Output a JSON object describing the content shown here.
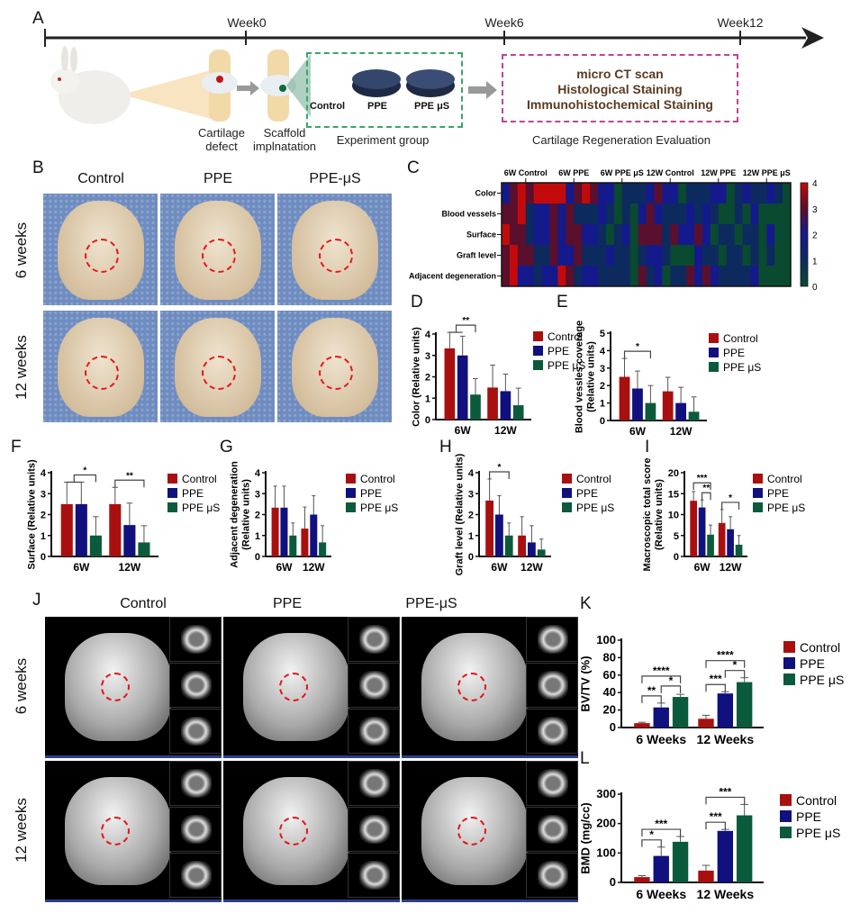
{
  "panel_labels": {
    "A": "A",
    "B": "B",
    "C": "C",
    "D": "D",
    "E": "E",
    "F": "F",
    "G": "G",
    "H": "H",
    "I": "I",
    "J": "J",
    "K": "K",
    "L": "L"
  },
  "timeline": {
    "weeks": [
      "Week0",
      "Week6",
      "Week12"
    ],
    "steps": {
      "defect": "Cartilage defect",
      "implant": "Scaffold implnatation"
    },
    "experiment_group": {
      "caption": "Experiment group",
      "items": [
        "Control",
        "PPE",
        "PPE μS"
      ]
    },
    "evaluation": {
      "caption": "Cartilage Regeneration Evaluation",
      "items": [
        "micro CT scan",
        "Histological Staining",
        "Immunohistochemical Staining"
      ]
    }
  },
  "photos_B": {
    "columns": [
      "Control",
      "PPE",
      "PPE-μS"
    ],
    "rows": [
      "6 weeks",
      "12 weeks"
    ]
  },
  "microct_J": {
    "columns": [
      "Control",
      "PPE",
      "PPE-μS"
    ],
    "rows": [
      "6 weeks",
      "12 weeks"
    ]
  },
  "colors": {
    "Control": "#a8100f",
    "PPE": "#10107e",
    "PPE μS": "#0b5a3b",
    "heat_4": "#c20a0a",
    "heat_3": "#5a0f2c",
    "heat_2": "#141a8c",
    "heat_1": "#0d2a5e",
    "heat_0": "#0a4a30"
  },
  "chart_data": [
    {
      "id": "C",
      "type": "heatmap",
      "column_groups": [
        "6W Control",
        "6W PPE",
        "6W PPE μS",
        "12W Control",
        "12W PPE",
        "12W PPE μS"
      ],
      "rows": [
        "Color",
        "Blood vessels",
        "Surface",
        "Graft level",
        "Adjacent degeneration"
      ],
      "colorbar": {
        "range": [
          0,
          4
        ],
        "ticks": [
          "4",
          "3",
          "2",
          "1",
          "0"
        ]
      },
      "values": [
        [
          2,
          3,
          4,
          3,
          4,
          4,
          4,
          4,
          2,
          3,
          4,
          3,
          2,
          2,
          0,
          1,
          1,
          1,
          2,
          3,
          2,
          2,
          0,
          1,
          1,
          1,
          2,
          2,
          0,
          1,
          2,
          1,
          1,
          2,
          1,
          0
        ],
        [
          3,
          3,
          4,
          1,
          2,
          2,
          3,
          2,
          3,
          1,
          1,
          1,
          2,
          1,
          0,
          1,
          0,
          2,
          3,
          2,
          1,
          1,
          1,
          2,
          1,
          2,
          1,
          0,
          0,
          1,
          0,
          2,
          0,
          0,
          0,
          0
        ],
        [
          4,
          3,
          3,
          1,
          2,
          2,
          3,
          2,
          3,
          3,
          2,
          2,
          1,
          0,
          1,
          2,
          0,
          3,
          3,
          3,
          1,
          3,
          2,
          2,
          3,
          2,
          0,
          1,
          1,
          0,
          1,
          1,
          0,
          2,
          0,
          0
        ],
        [
          3,
          4,
          3,
          3,
          1,
          1,
          3,
          2,
          2,
          3,
          1,
          1,
          1,
          2,
          1,
          1,
          0,
          1,
          2,
          2,
          1,
          0,
          0,
          0,
          2,
          1,
          1,
          0,
          1,
          1,
          0,
          1,
          0,
          1,
          0,
          0
        ],
        [
          3,
          4,
          2,
          2,
          1,
          2,
          2,
          4,
          3,
          1,
          2,
          2,
          1,
          1,
          1,
          1,
          0,
          3,
          1,
          2,
          0,
          1,
          1,
          3,
          2,
          3,
          2,
          1,
          1,
          1,
          1,
          2,
          0,
          0,
          0,
          0
        ]
      ]
    },
    {
      "id": "D",
      "type": "bar",
      "ylabel": [
        "Color (Relative units)"
      ],
      "ylim": [
        0,
        4
      ],
      "yticks": [
        "0",
        "1",
        "2",
        "3",
        "4"
      ],
      "categories": [
        "6W",
        "12W"
      ],
      "series": [
        {
          "name": "Control",
          "values": [
            3.33,
            1.5
          ],
          "errors": [
            0.75,
            1.05
          ]
        },
        {
          "name": "PPE",
          "values": [
            3.0,
            1.33
          ],
          "errors": [
            0.9,
            0.8
          ]
        },
        {
          "name": "PPE μS",
          "values": [
            1.17,
            0.67
          ],
          "errors": [
            0.75,
            0.8
          ]
        }
      ],
      "significance": [
        {
          "group": 0,
          "from": 0.5,
          "to": 2,
          "label": "**"
        }
      ]
    },
    {
      "id": "E",
      "type": "bar",
      "ylabel": [
        "Blood vessles coverage",
        "(Relative units)"
      ],
      "ylim": [
        0,
        5
      ],
      "yticks": [
        "0",
        "1",
        "2",
        "3",
        "4",
        "5"
      ],
      "categories": [
        "6W",
        "12W"
      ],
      "series": [
        {
          "name": "Control",
          "values": [
            2.5,
            1.67
          ],
          "errors": [
            1.05,
            0.8
          ]
        },
        {
          "name": "PPE",
          "values": [
            1.83,
            1.0
          ],
          "errors": [
            1.0,
            0.9
          ]
        },
        {
          "name": "PPE μS",
          "values": [
            1.0,
            0.5
          ],
          "errors": [
            1.0,
            0.85
          ]
        }
      ],
      "significance": [
        {
          "group": 0,
          "from": 0,
          "to": 2,
          "label": "*"
        }
      ]
    },
    {
      "id": "F",
      "type": "bar",
      "ylabel": [
        "Surface (Relative units)"
      ],
      "ylim": [
        0,
        4
      ],
      "yticks": [
        "0",
        "1",
        "2",
        "3",
        "4"
      ],
      "categories": [
        "6W",
        "12W"
      ],
      "series": [
        {
          "name": "Control",
          "values": [
            2.5,
            2.5
          ],
          "errors": [
            1.05,
            0.8
          ]
        },
        {
          "name": "PPE",
          "values": [
            2.5,
            1.5
          ],
          "errors": [
            1.05,
            1.05
          ]
        },
        {
          "name": "PPE μS",
          "values": [
            1.0,
            0.67
          ],
          "errors": [
            0.9,
            0.8
          ]
        }
      ],
      "significance": [
        {
          "group": 0,
          "from": 0.5,
          "to": 2,
          "label": "*"
        },
        {
          "group": 1,
          "from": 0,
          "to": 2,
          "label": "**"
        }
      ]
    },
    {
      "id": "G",
      "type": "bar",
      "ylabel": [
        "Adjacent degeneration",
        "(Relative units)"
      ],
      "ylim": [
        0,
        4
      ],
      "yticks": [
        "0",
        "1",
        "2",
        "3",
        "4"
      ],
      "categories": [
        "6W",
        "12W"
      ],
      "series": [
        {
          "name": "Control",
          "values": [
            2.33,
            1.33
          ],
          "errors": [
            1.03,
            1.03
          ]
        },
        {
          "name": "PPE",
          "values": [
            2.33,
            2.0
          ],
          "errors": [
            1.03,
            0.9
          ]
        },
        {
          "name": "PPE μS",
          "values": [
            1.0,
            0.67
          ],
          "errors": [
            0.6,
            0.8
          ]
        }
      ],
      "significance": []
    },
    {
      "id": "H",
      "type": "bar",
      "ylabel": [
        "Graft level (Relative units)"
      ],
      "ylim": [
        0,
        4
      ],
      "yticks": [
        "0",
        "1",
        "2",
        "3",
        "4"
      ],
      "categories": [
        "6W",
        "12W"
      ],
      "series": [
        {
          "name": "Control",
          "values": [
            2.67,
            1.0
          ],
          "errors": [
            1.03,
            0.9
          ]
        },
        {
          "name": "PPE",
          "values": [
            2.0,
            0.67
          ],
          "errors": [
            0.9,
            0.8
          ]
        },
        {
          "name": "PPE μS",
          "values": [
            1.0,
            0.33
          ],
          "errors": [
            0.6,
            0.5
          ]
        }
      ],
      "significance": [
        {
          "group": 0,
          "from": 0,
          "to": 2,
          "label": "*"
        }
      ]
    },
    {
      "id": "I",
      "type": "bar",
      "ylabel": [
        "Macroscopic total score",
        "(Relative units)"
      ],
      "ylim": [
        0,
        20
      ],
      "yticks": [
        "0",
        "5",
        "10",
        "15",
        "20"
      ],
      "categories": [
        "6W",
        "12W"
      ],
      "series": [
        {
          "name": "Control",
          "values": [
            13.3,
            8.0
          ],
          "errors": [
            2.2,
            3.2
          ]
        },
        {
          "name": "PPE",
          "values": [
            11.7,
            6.5
          ],
          "errors": [
            1.8,
            3.0
          ]
        },
        {
          "name": "PPE μS",
          "values": [
            5.2,
            2.8
          ],
          "errors": [
            2.3,
            2.2
          ]
        }
      ],
      "significance": [
        {
          "group": 0,
          "from": 1,
          "to": 2,
          "label": "**"
        },
        {
          "group": 0,
          "from": 0,
          "to": 2,
          "label": "***"
        },
        {
          "group": 1,
          "from": 0,
          "to": 2,
          "label": "*"
        }
      ]
    },
    {
      "id": "K",
      "type": "bar",
      "ylabel": [
        "BV/TV (%)"
      ],
      "ylim": [
        0,
        100
      ],
      "yticks": [
        "0",
        "20",
        "40",
        "60",
        "80",
        "100"
      ],
      "categories": [
        "6 Weeks",
        "12 Weeks"
      ],
      "series": [
        {
          "name": "Control",
          "values": [
            5,
            10
          ],
          "errors": [
            1,
            4
          ]
        },
        {
          "name": "PPE",
          "values": [
            23,
            39
          ],
          "errors": [
            5,
            2
          ]
        },
        {
          "name": "PPE μS",
          "values": [
            35,
            52
          ],
          "errors": [
            3,
            5
          ]
        }
      ],
      "significance": [
        {
          "group": 0,
          "from": 0,
          "to": 1,
          "label": "**"
        },
        {
          "group": 0,
          "from": 1,
          "to": 2,
          "label": "*"
        },
        {
          "group": 0,
          "from": 0,
          "to": 2,
          "label": "****"
        },
        {
          "group": 1,
          "from": 0,
          "to": 1,
          "label": "***"
        },
        {
          "group": 1,
          "from": 1,
          "to": 2,
          "label": "*"
        },
        {
          "group": 1,
          "from": 0,
          "to": 2,
          "label": "****"
        }
      ]
    },
    {
      "id": "L",
      "type": "bar",
      "ylabel": [
        "BMD (mg/cc)"
      ],
      "ylim": [
        0,
        300
      ],
      "yticks": [
        "0",
        "100",
        "200",
        "300"
      ],
      "categories": [
        "6 Weeks",
        "12 Weeks"
      ],
      "series": [
        {
          "name": "Control",
          "values": [
            18,
            40
          ],
          "errors": [
            5,
            18
          ]
        },
        {
          "name": "PPE",
          "values": [
            90,
            175
          ],
          "errors": [
            30,
            5
          ]
        },
        {
          "name": "PPE μS",
          "values": [
            138,
            228
          ],
          "errors": [
            18,
            37
          ]
        }
      ],
      "significance": [
        {
          "group": 0,
          "from": 0,
          "to": 1,
          "label": "*"
        },
        {
          "group": 0,
          "from": 0,
          "to": 2,
          "label": "***"
        },
        {
          "group": 1,
          "from": 0,
          "to": 1,
          "label": "***"
        },
        {
          "group": 1,
          "from": 0,
          "to": 2,
          "label": "***"
        }
      ]
    }
  ]
}
